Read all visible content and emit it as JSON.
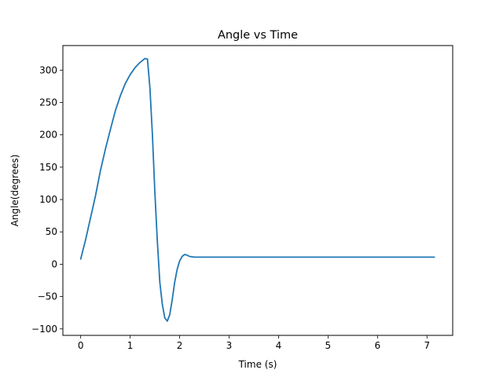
{
  "chart_data": {
    "type": "line",
    "title": "Angle vs Time",
    "xlabel": "Time (s)",
    "ylabel": "Angle(degrees)",
    "xlim": [
      -0.36,
      7.52
    ],
    "ylim": [
      -110,
      338
    ],
    "xticks": [
      0,
      1,
      2,
      3,
      4,
      5,
      6,
      7
    ],
    "xtick_labels": [
      "0",
      "1",
      "2",
      "3",
      "4",
      "5",
      "6",
      "7"
    ],
    "yticks": [
      -100,
      -50,
      0,
      50,
      100,
      150,
      200,
      250,
      300
    ],
    "ytick_labels": [
      "−100",
      "−50",
      "0",
      "50",
      "100",
      "150",
      "200",
      "250",
      "300"
    ],
    "grid": false,
    "series": [
      {
        "color": "#1f77b4",
        "x": [
          0.0,
          0.1,
          0.2,
          0.3,
          0.4,
          0.5,
          0.6,
          0.7,
          0.8,
          0.9,
          1.0,
          1.1,
          1.2,
          1.3,
          1.35,
          1.4,
          1.45,
          1.5,
          1.55,
          1.6,
          1.65,
          1.7,
          1.75,
          1.8,
          1.85,
          1.9,
          1.95,
          2.0,
          2.05,
          2.1,
          2.15,
          2.2,
          2.3,
          2.5,
          3.0,
          4.0,
          5.0,
          6.0,
          7.0,
          7.15
        ],
        "y": [
          8,
          38,
          72,
          106,
          145,
          178,
          208,
          237,
          260,
          279,
          293,
          304,
          312,
          318,
          317,
          272,
          200,
          110,
          35,
          -28,
          -62,
          -83,
          -88,
          -78,
          -55,
          -28,
          -8,
          5,
          12,
          15,
          14,
          12,
          11,
          11,
          11,
          11,
          11,
          11,
          11,
          11
        ]
      }
    ]
  }
}
